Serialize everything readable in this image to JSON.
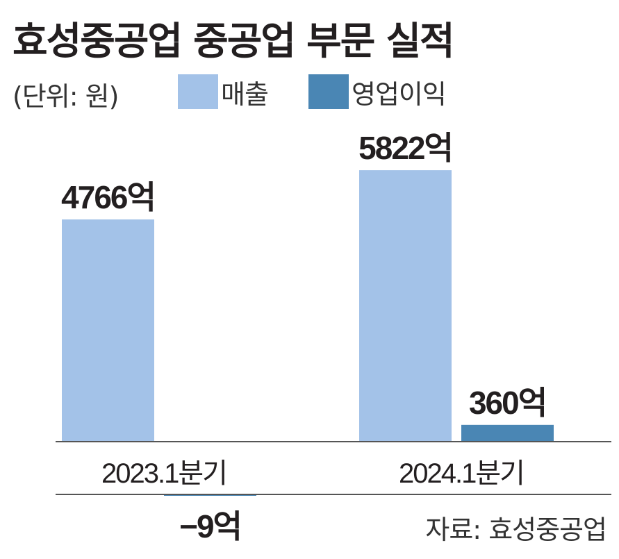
{
  "title": "효성중공업 중공업 부문 실적",
  "unit_note": "(단위: 원)",
  "source": "자료: 효성중공업",
  "colors": {
    "sales": "#a3c2e8",
    "operating_profit": "#4a86b4",
    "baseline": "#555555",
    "text": "#231f20"
  },
  "chart_data": {
    "type": "bar",
    "title": "효성중공업 중공업 부문 실적",
    "ylabel": "(단위: 원)",
    "categories": [
      "2023.1분기",
      "2024.1분기"
    ],
    "series": [
      {
        "name": "매출",
        "values": [
          4766,
          5822
        ],
        "labels": [
          "4766억",
          "5822억"
        ]
      },
      {
        "name": "영업이익",
        "values": [
          -9,
          360
        ],
        "labels": [
          "−9억",
          "360억"
        ]
      }
    ],
    "grid": false,
    "legend_position": "top-left"
  }
}
